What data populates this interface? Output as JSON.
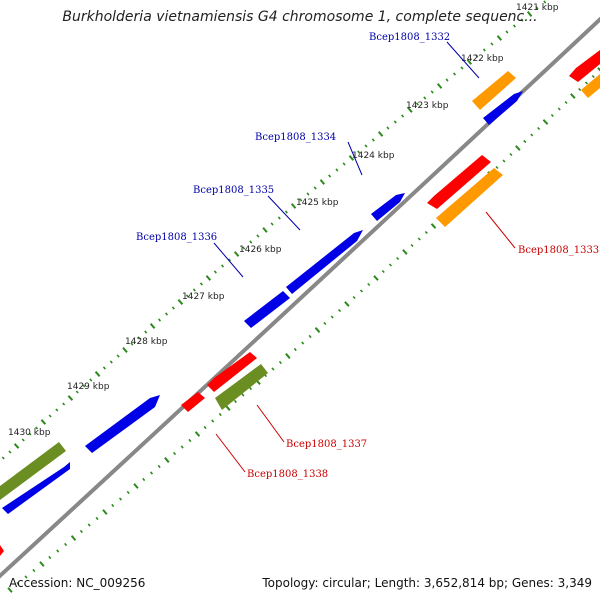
{
  "title": "Burkholderia vietnamiensis G4 chromosome 1, complete sequenc...",
  "footer": {
    "accession": "Accession: NC_009256",
    "summary": "Topology: circular; Length: 3,652,814 bp; Genes: 3,349"
  },
  "colors": {
    "background": "#ffffff",
    "backbone": "#888888",
    "tick": "#2a8a1a",
    "forward_gene": "#0000e6",
    "reverse_gene": "#ff0000",
    "rrna": "#ff9900",
    "cds_pseudo": "#6b8e23",
    "forward_label": "#0000aa",
    "reverse_label": "#cc0000"
  },
  "ruler": [
    {
      "label": "1421 kbp"
    },
    {
      "label": "1422 kbp"
    },
    {
      "label": "1423 kbp"
    },
    {
      "label": "1424 kbp"
    },
    {
      "label": "1425 kbp"
    },
    {
      "label": "1426 kbp"
    },
    {
      "label": "1427 kbp"
    },
    {
      "label": "1428 kbp"
    },
    {
      "label": "1429 kbp"
    },
    {
      "label": "1430 kbp"
    }
  ],
  "gene_labels": [
    {
      "id": "Bcep1808_1332",
      "strand": "forward"
    },
    {
      "id": "Bcep1808_1334",
      "strand": "forward"
    },
    {
      "id": "Bcep1808_1335",
      "strand": "forward"
    },
    {
      "id": "Bcep1808_1336",
      "strand": "forward"
    },
    {
      "id": "Bcep1808_1333",
      "strand": "reverse"
    },
    {
      "id": "Bcep1808_1337",
      "strand": "reverse"
    },
    {
      "id": "Bcep1808_1338",
      "strand": "reverse"
    }
  ]
}
